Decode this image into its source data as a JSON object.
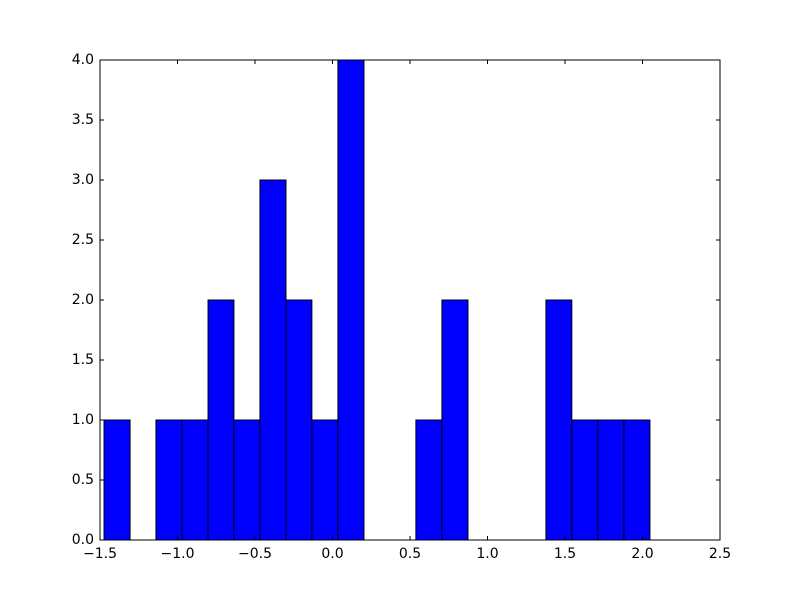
{
  "chart_data": {
    "type": "histogram",
    "bins": [
      -1.474,
      -1.306,
      -1.139,
      -0.971,
      -0.803,
      -0.636,
      -0.468,
      -0.3,
      -0.133,
      0.035,
      0.203,
      0.371,
      0.538,
      0.706,
      0.874,
      1.041,
      1.209,
      1.377,
      1.544,
      1.712,
      1.88,
      2.048
    ],
    "values": [
      1,
      0,
      1,
      1,
      2,
      1,
      3,
      2,
      1,
      4,
      0,
      0,
      1,
      2,
      0,
      0,
      0,
      2,
      1,
      1,
      1
    ],
    "color": "#0000ff",
    "xlim": [
      -1.5,
      2.5
    ],
    "ylim": [
      0,
      4
    ],
    "xticks": [
      {
        "value": -1.5,
        "label": "−1.5"
      },
      {
        "value": -1,
        "label": "−1.0"
      },
      {
        "value": -0.5,
        "label": "−0.5"
      },
      {
        "value": 0,
        "label": "0.0"
      },
      {
        "value": 0.5,
        "label": "0.5"
      },
      {
        "value": 1,
        "label": "1.0"
      },
      {
        "value": 1.5,
        "label": "1.5"
      },
      {
        "value": 2,
        "label": "2.0"
      },
      {
        "value": 2.5,
        "label": "2.5"
      }
    ],
    "yticks": [
      {
        "value": 0,
        "label": "0.0"
      },
      {
        "value": 0.5,
        "label": "0.5"
      },
      {
        "value": 1,
        "label": "1.0"
      },
      {
        "value": 1.5,
        "label": "1.5"
      },
      {
        "value": 2,
        "label": "2.0"
      },
      {
        "value": 2.5,
        "label": "2.5"
      },
      {
        "value": 3,
        "label": "3.0"
      },
      {
        "value": 3.5,
        "label": "3.5"
      },
      {
        "value": 4,
        "label": "4.0"
      }
    ],
    "grid": false
  }
}
